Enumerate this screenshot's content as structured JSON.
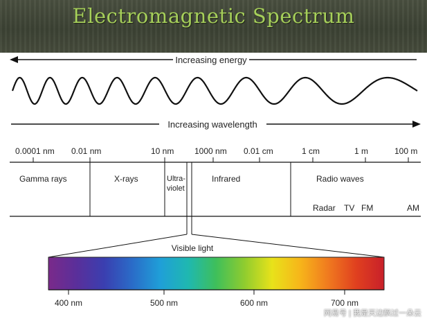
{
  "title": "Electromagnetic Spectrum",
  "energy_arrow_label": "Increasing energy",
  "wavelength_arrow_label": "Increasing wavelength",
  "scale_labels": [
    "0.0001 nm",
    "0.01 nm",
    "10 nm",
    "1000 nm",
    "0.01 cm",
    "1 cm",
    "1 m",
    "100 m"
  ],
  "regions": {
    "gamma": "Gamma rays",
    "xray": "X-rays",
    "uv_line1": "Ultra-",
    "uv_line2": "violet",
    "infrared": "Infrared",
    "radio": "Radio waves"
  },
  "radio_bands": [
    "Radar",
    "TV",
    "FM",
    "AM"
  ],
  "visible": {
    "label": "Visible light",
    "wavelengths": [
      "400 nm",
      "500 nm",
      "600 nm",
      "700 nm"
    ],
    "colors": [
      "#7a2a8a",
      "#5a2f9a",
      "#3a3fb0",
      "#2a6cc8",
      "#1f9fd8",
      "#1fb8b0",
      "#3fbf5a",
      "#8fcc2f",
      "#e8e21a",
      "#f7b51a",
      "#f07a1f",
      "#e0401f",
      "#c8202a"
    ]
  },
  "watermark": "网易号 | 我是天边飘过一朵云"
}
